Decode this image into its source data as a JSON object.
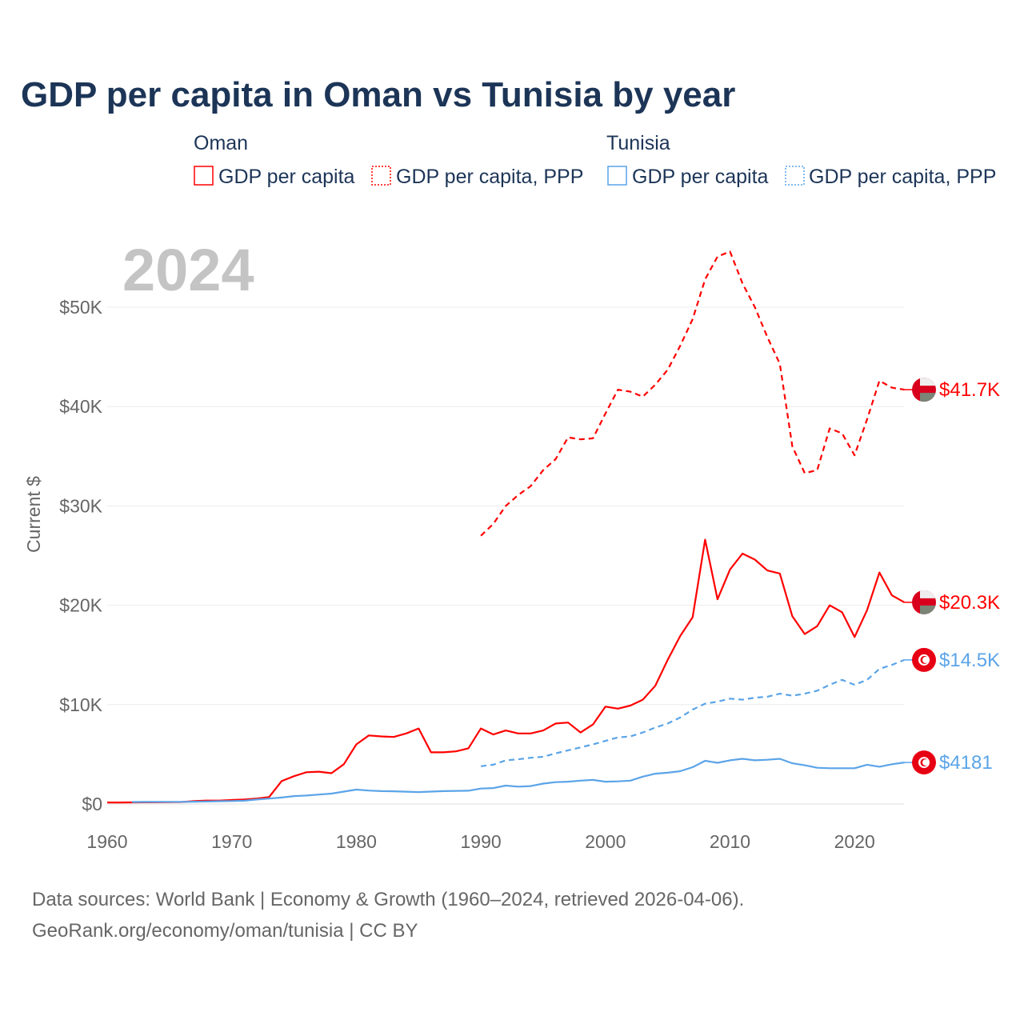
{
  "chart_data": {
    "type": "line",
    "title": "GDP per capita in Oman vs Tunisia by year",
    "year_label": "2024",
    "ylabel": "Current $",
    "xlabel": "",
    "xlim": [
      1960,
      2024
    ],
    "ylim": [
      0,
      56000
    ],
    "grid": true,
    "x_ticks": [
      1960,
      1970,
      1980,
      1990,
      2000,
      2010,
      2020
    ],
    "x_tick_labels": [
      "1960",
      "1970",
      "1980",
      "1990",
      "2000",
      "2010",
      "2020"
    ],
    "y_ticks": [
      0,
      10000,
      20000,
      30000,
      40000,
      50000
    ],
    "y_tick_labels": [
      "$0",
      "$10K",
      "$20K",
      "$30K",
      "$40K",
      "$50K"
    ],
    "legend": {
      "placement": "top",
      "groups": [
        {
          "country": "Oman",
          "items": [
            "GDP per capita",
            "GDP per capita, PPP"
          ]
        },
        {
          "country": "Tunisia",
          "items": [
            "GDP per capita",
            "GDP per capita, PPP"
          ]
        }
      ]
    },
    "colors": {
      "oman": "#ff0000",
      "tunisia": "#5ba4e8"
    },
    "series": [
      {
        "name": "Oman GDP per capita",
        "country": "oman",
        "dashed": false,
        "start": 1960,
        "end_label": "$20.3K",
        "values": [
          150,
          150,
          160,
          170,
          180,
          190,
          200,
          300,
          350,
          350,
          400,
          450,
          550,
          700,
          2300,
          2800,
          3200,
          3250,
          3100,
          4000,
          6000,
          6900,
          6800,
          6750,
          7100,
          7600,
          5200,
          5200,
          5300,
          5600,
          7600,
          7000,
          7400,
          7100,
          7100,
          7400,
          8100,
          8200,
          7200,
          8000,
          9800,
          9600,
          9900,
          10500,
          11900,
          14500,
          16900,
          18800,
          26600,
          20600,
          23600,
          25200,
          24600,
          23500,
          23200,
          18900,
          17100,
          17900,
          20000,
          19300,
          16800,
          19500,
          23300,
          21000,
          20300
        ]
      },
      {
        "name": "Oman GDP per capita, PPP",
        "country": "oman",
        "dashed": true,
        "start": 1990,
        "end_label": "$41.7K",
        "values": [
          27000,
          28200,
          30000,
          31100,
          32000,
          33600,
          34700,
          36900,
          36700,
          36800,
          39300,
          41700,
          41500,
          41000,
          42200,
          43700,
          46100,
          48800,
          52800,
          55100,
          55600,
          52400,
          50000,
          47000,
          44300,
          36000,
          33300,
          33600,
          37800,
          37300,
          35100,
          38700,
          42600,
          41900,
          41700
        ]
      },
      {
        "name": "Tunisia GDP per capita",
        "country": "tunisia",
        "dashed": false,
        "start": 1962,
        "end_label": "$4181",
        "values": [
          200,
          210,
          220,
          220,
          220,
          230,
          250,
          280,
          300,
          330,
          450,
          550,
          650,
          800,
          850,
          950,
          1050,
          1250,
          1450,
          1350,
          1300,
          1280,
          1240,
          1200,
          1250,
          1300,
          1320,
          1340,
          1550,
          1600,
          1850,
          1750,
          1800,
          2050,
          2200,
          2250,
          2350,
          2420,
          2250,
          2280,
          2350,
          2750,
          3050,
          3150,
          3300,
          3700,
          4350,
          4150,
          4400,
          4550,
          4400,
          4450,
          4550,
          4100,
          3900,
          3650,
          3600,
          3600,
          3600,
          3950,
          3750,
          4000,
          4181
        ]
      },
      {
        "name": "Tunisia GDP per capita, PPP",
        "country": "tunisia",
        "dashed": true,
        "start": 1990,
        "end_label": "$14.5K",
        "values": [
          3800,
          3950,
          4400,
          4500,
          4650,
          4750,
          5100,
          5400,
          5700,
          6000,
          6350,
          6700,
          6800,
          7200,
          7700,
          8100,
          8700,
          9500,
          10100,
          10300,
          10600,
          10500,
          10700,
          10800,
          11100,
          10900,
          11100,
          11400,
          12000,
          12500,
          12000,
          12500,
          13600,
          14000,
          14500
        ]
      }
    ]
  },
  "footer": {
    "line1": "Data sources: World Bank | Economy & Growth (1960–2024, retrieved 2026-04-06).",
    "line2": "GeoRank.org/economy/oman/tunisia | CC BY"
  }
}
